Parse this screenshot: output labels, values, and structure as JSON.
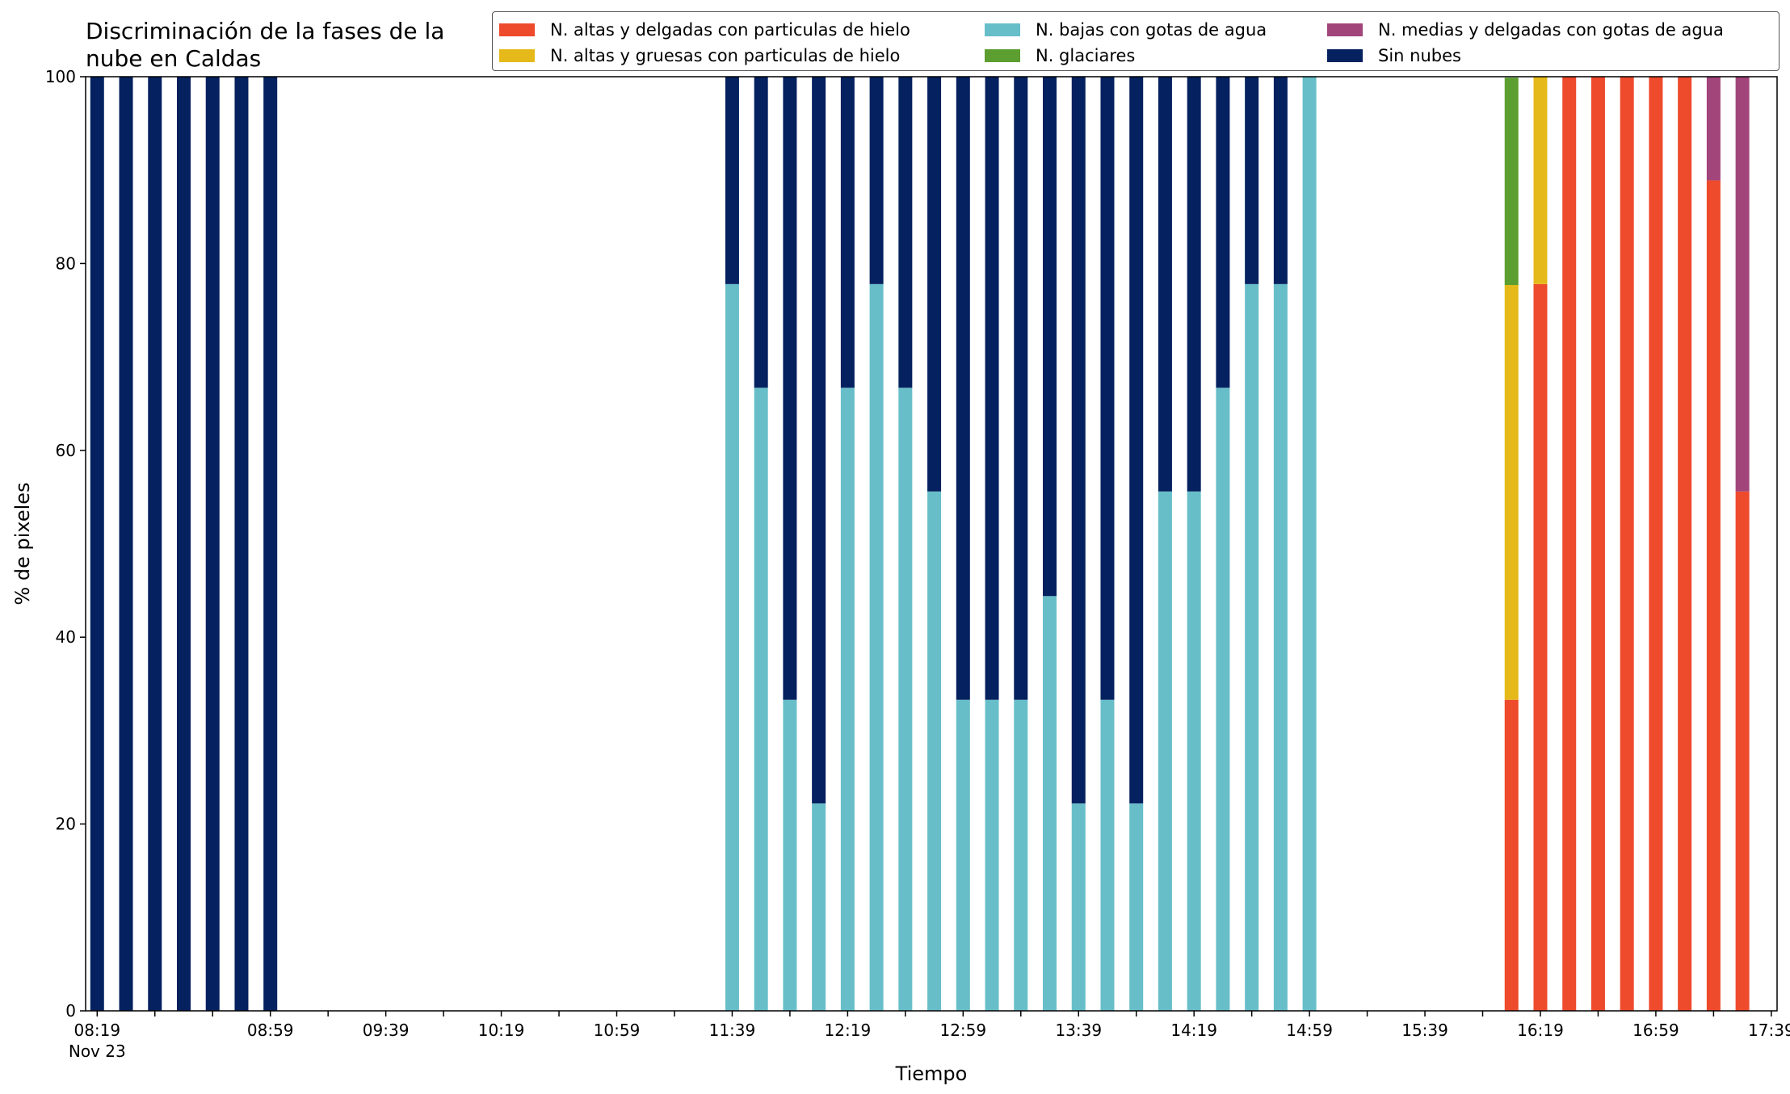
{
  "chart_data": {
    "type": "bar",
    "stacked": true,
    "title": "Discriminación de la fases de la\nnube en Caldas",
    "xlabel": "Tiempo",
    "ylabel": "% de pixeles",
    "ylim": [
      0,
      100
    ],
    "yticks": [
      0,
      20,
      40,
      60,
      80,
      100
    ],
    "date_label": "Nov 23",
    "xlim": [
      "08:15",
      "18:01"
    ],
    "xticks": [
      "08:19",
      "08:39",
      "08:59",
      "09:19",
      "09:39",
      "09:59",
      "10:19",
      "10:39",
      "10:59",
      "11:19",
      "11:39",
      "11:59",
      "12:19",
      "12:39",
      "12:59",
      "13:19",
      "13:39",
      "13:59",
      "14:19",
      "14:39",
      "14:59",
      "15:19",
      "15:39",
      "15:59",
      "16:19",
      "16:39",
      "16:59",
      "17:19",
      "17:39",
      "17:59"
    ],
    "xtick_labels": [
      "08:19",
      "",
      "",
      "08:59",
      "",
      "09:39",
      "",
      "10:19",
      "",
      "10:59",
      "",
      "11:39",
      "",
      "12:19",
      "",
      "12:59",
      "",
      "13:39",
      "",
      "14:19",
      "",
      "14:59",
      "",
      "15:39",
      "",
      "16:19",
      "",
      "16:59",
      "",
      "17:39"
    ],
    "legend_position": "top-right",
    "grid": false,
    "x": [
      "08:19",
      "08:29",
      "08:39",
      "08:49",
      "08:59",
      "09:09",
      "09:19",
      "11:59",
      "12:09",
      "12:19",
      "12:29",
      "12:39",
      "12:49",
      "12:59",
      "13:09",
      "13:19",
      "13:29",
      "13:39",
      "13:49",
      "13:59",
      "14:09",
      "14:19",
      "14:29",
      "14:39",
      "14:49",
      "14:59",
      "15:09",
      "15:19",
      "15:29",
      "16:29",
      "16:39",
      "16:49",
      "16:59",
      "17:09",
      "17:19",
      "17:29",
      "17:39",
      "17:49"
    ],
    "series": [
      {
        "name": "N. altas y delgadas con particulas de hielo",
        "color": "#ee4a2c",
        "values": [
          0,
          0,
          0,
          0,
          0,
          0,
          0,
          0,
          0,
          0,
          0,
          0,
          0,
          0,
          0,
          0,
          0,
          0,
          0,
          0,
          0,
          0,
          0,
          0,
          0,
          0,
          0,
          0,
          0,
          33.3,
          77.8,
          100,
          100,
          100,
          100,
          100,
          88.9,
          55.6
        ]
      },
      {
        "name": "N. altas y gruesas con particulas de hielo",
        "color": "#e5b919",
        "values": [
          0,
          0,
          0,
          0,
          0,
          0,
          0,
          0,
          0,
          0,
          0,
          0,
          0,
          0,
          0,
          0,
          0,
          0,
          0,
          0,
          0,
          0,
          0,
          0,
          0,
          0,
          0,
          0,
          0,
          44.4,
          22.2,
          0,
          0,
          0,
          0,
          0,
          0,
          0
        ]
      },
      {
        "name": "N. bajas con gotas de agua",
        "color": "#67bec9",
        "values": [
          0,
          0,
          0,
          0,
          0,
          0,
          0,
          77.8,
          66.7,
          33.3,
          22.2,
          66.7,
          77.8,
          66.7,
          55.6,
          33.3,
          33.3,
          33.3,
          44.4,
          22.2,
          33.3,
          22.2,
          55.6,
          55.6,
          66.7,
          77.8,
          77.8,
          100,
          0,
          0,
          0,
          0,
          0,
          0,
          0,
          0,
          0,
          0
        ]
      },
      {
        "name": "N. glaciares",
        "color": "#5c9e30",
        "values": [
          0,
          0,
          0,
          0,
          0,
          0,
          0,
          0,
          0,
          0,
          0,
          0,
          0,
          0,
          0,
          0,
          0,
          0,
          0,
          0,
          0,
          0,
          0,
          0,
          0,
          0,
          0,
          0,
          0,
          22.2,
          0,
          0,
          0,
          0,
          0,
          0,
          0,
          0
        ]
      },
      {
        "name": "N. medias y delgadas con gotas de agua",
        "color": "#a1457a",
        "values": [
          0,
          0,
          0,
          0,
          0,
          0,
          0,
          0,
          0,
          0,
          0,
          0,
          0,
          0,
          0,
          0,
          0,
          0,
          0,
          0,
          0,
          0,
          0,
          0,
          0,
          0,
          0,
          0,
          0,
          0,
          0,
          0,
          0,
          0,
          0,
          0,
          11.1,
          44.4
        ]
      },
      {
        "name": "Sin nubes",
        "color": "#05215f",
        "values": [
          100,
          100,
          100,
          100,
          100,
          100,
          100,
          22.2,
          33.3,
          66.7,
          77.8,
          33.3,
          22.2,
          33.3,
          44.4,
          66.7,
          66.7,
          66.7,
          55.6,
          77.8,
          66.7,
          77.8,
          44.4,
          44.4,
          33.3,
          22.2,
          22.2,
          0,
          0,
          0,
          0,
          0,
          0,
          0,
          0,
          0,
          0,
          0
        ]
      }
    ]
  }
}
